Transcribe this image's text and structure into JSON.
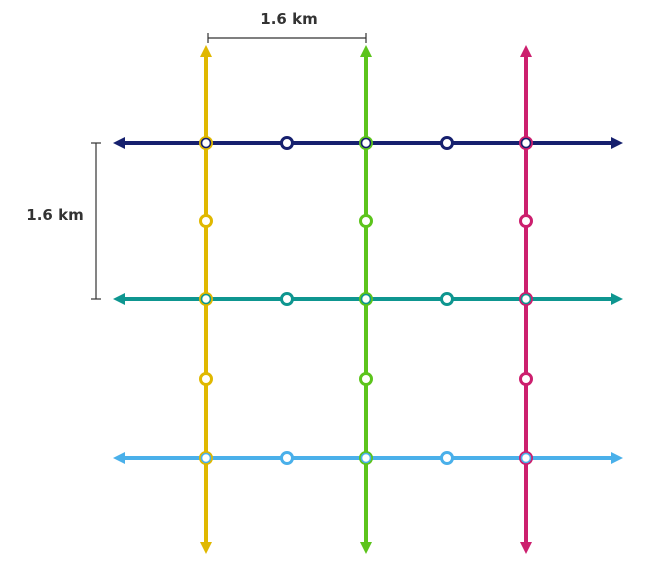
{
  "scale_labels": {
    "horizontal": "1.6 km",
    "vertical": "1.6 km"
  },
  "colors": {
    "dimension": "#333333",
    "station_fill": "#ffffff"
  },
  "lines": {
    "vertical": [
      {
        "id": "yellow",
        "color": "#e0b800"
      },
      {
        "id": "green",
        "color": "#5cc41c"
      },
      {
        "id": "magenta",
        "color": "#cc1f6e"
      }
    ],
    "horizontal": [
      {
        "id": "navy",
        "color": "#16206e"
      },
      {
        "id": "teal",
        "color": "#0e9690"
      },
      {
        "id": "lightblue",
        "color": "#4ab0ea"
      }
    ]
  },
  "grid": {
    "columns": 5,
    "rows": 5,
    "vertical_lines_at_columns": [
      0,
      2,
      4
    ],
    "horizontal_lines_at_rows": [
      0,
      2,
      4
    ]
  }
}
